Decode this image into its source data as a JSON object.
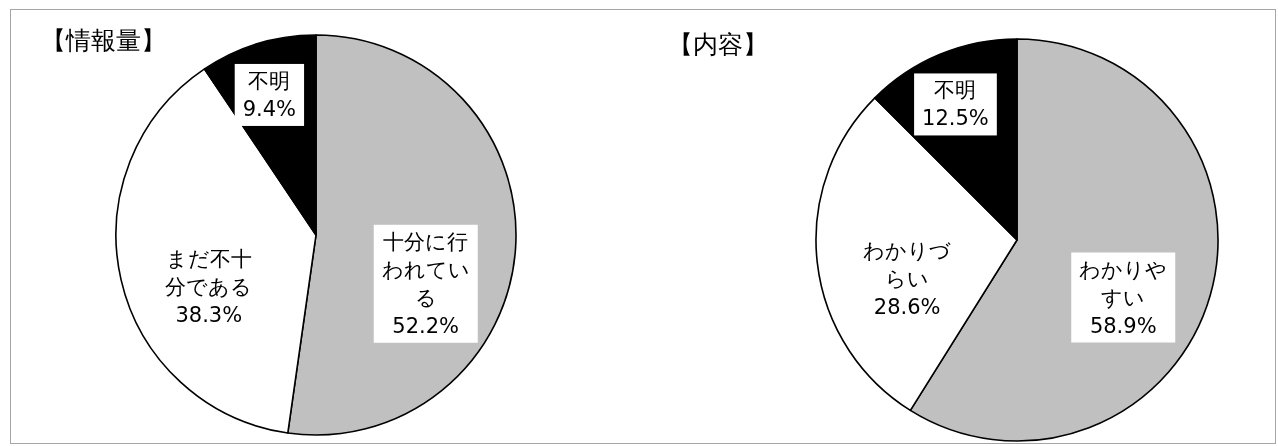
{
  "chart_data": [
    {
      "type": "pie",
      "title": "【情報量】",
      "categories": [
        "十分に行われている",
        "まだ不十分である",
        "不明"
      ],
      "values": [
        52.2,
        38.3,
        9.4
      ],
      "colors": [
        "#c0c0c0",
        "#ffffff",
        "#000000"
      ],
      "value_labels": [
        "52.2%",
        "38.3%",
        "9.4%"
      ]
    },
    {
      "type": "pie",
      "title": "【内容】",
      "categories": [
        "わかりやすい",
        "わかりづらい",
        "不明"
      ],
      "values": [
        58.9,
        28.6,
        12.5
      ],
      "colors": [
        "#c0c0c0",
        "#ffffff",
        "#000000"
      ],
      "value_labels": [
        "58.9%",
        "28.6%",
        "12.5%"
      ]
    }
  ]
}
